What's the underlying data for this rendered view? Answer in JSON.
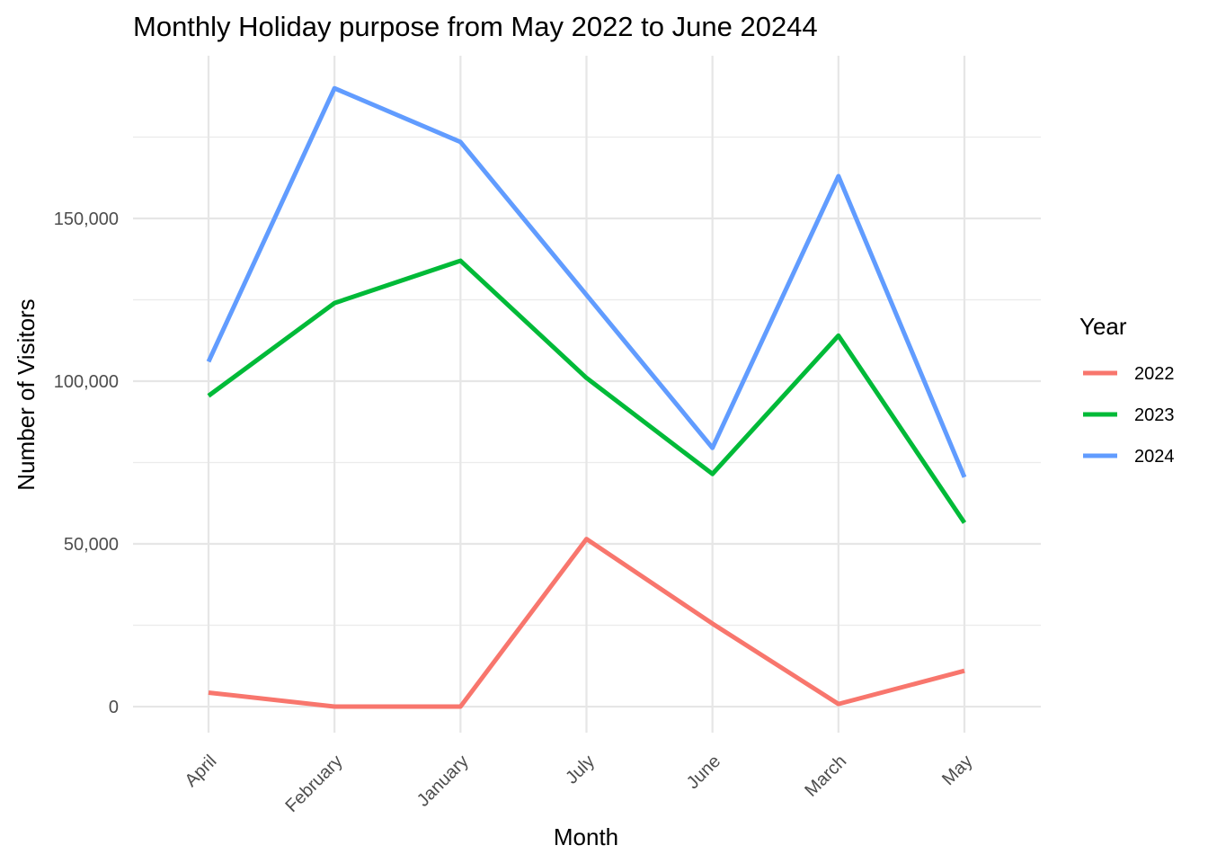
{
  "chart_data": {
    "type": "line",
    "title": "Monthly Holiday purpose from May 2022 to June 20244",
    "xlabel": "Month",
    "ylabel": "Number of Visitors",
    "categories": [
      "April",
      "February",
      "January",
      "July",
      "June",
      "March",
      "May"
    ],
    "ylim": [
      -8000,
      200000
    ],
    "y_ticks": [
      0,
      50000,
      100000,
      150000
    ],
    "y_tick_labels": [
      "0",
      "50,000",
      "100,000",
      "150,000"
    ],
    "y_minor_ticks": [
      25000,
      75000,
      125000,
      175000
    ],
    "grid": true,
    "legend": {
      "title": "Year",
      "position": "right"
    },
    "series": [
      {
        "name": "2022",
        "color": "#F8766D",
        "values": [
          4300,
          0,
          0,
          51500,
          25500,
          800,
          11000
        ]
      },
      {
        "name": "2023",
        "color": "#00BA38",
        "values": [
          95500,
          124000,
          137000,
          101000,
          71500,
          114000,
          56500
        ]
      },
      {
        "name": "2024",
        "color": "#619CFF",
        "values": [
          106000,
          190000,
          173500,
          126500,
          79500,
          163000,
          70500
        ]
      }
    ]
  }
}
